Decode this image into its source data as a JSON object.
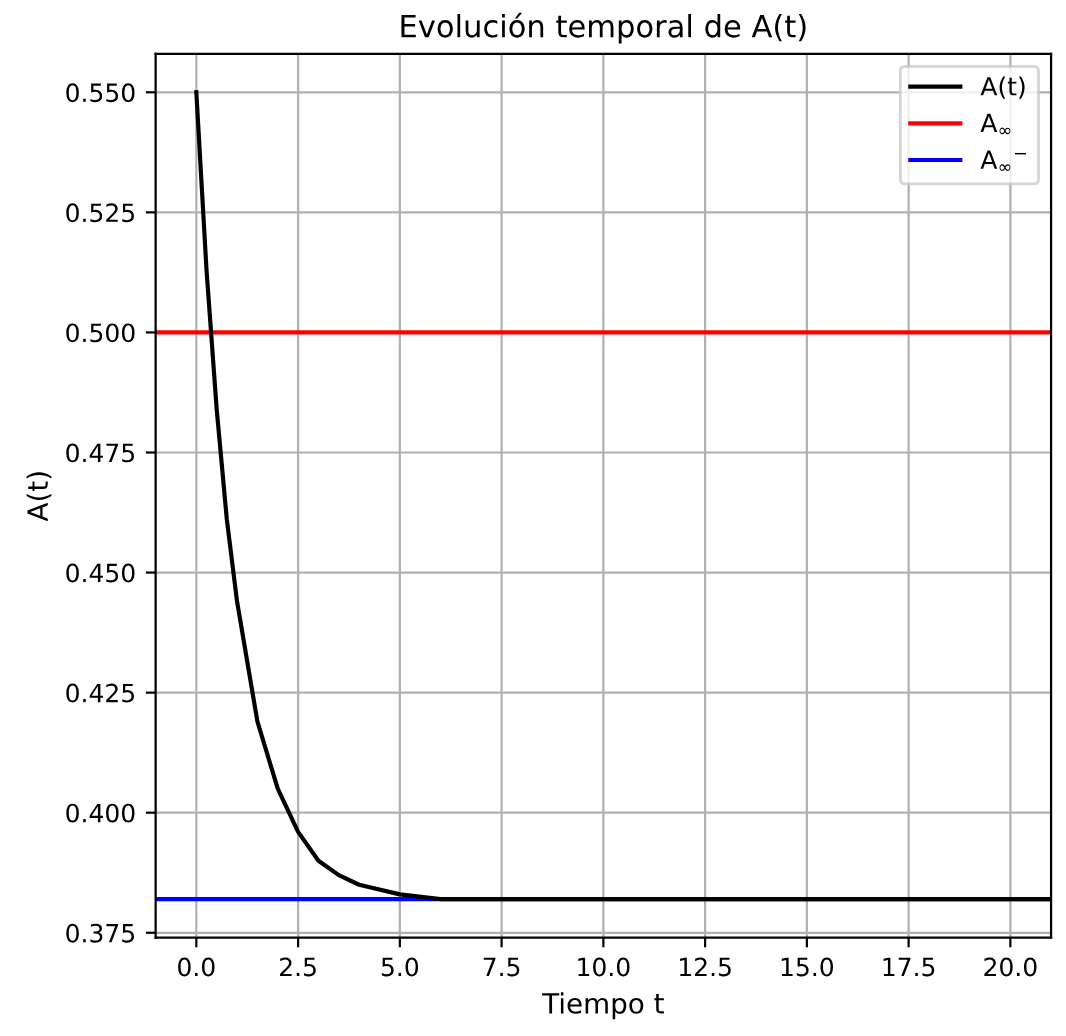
{
  "chart_data": {
    "type": "line",
    "title": "Evolución temporal de A(t)",
    "xlabel": "Tiempo t",
    "ylabel": "A(t)",
    "x": [
      0,
      0.25,
      0.5,
      0.75,
      1,
      1.5,
      2,
      2.5,
      3,
      3.5,
      4,
      5,
      6,
      7,
      8,
      10,
      12.5,
      15,
      17.5,
      20,
      21
    ],
    "series": [
      {
        "name": "A(t)",
        "color": "#000000",
        "values": [
          0.55,
          0.513,
          0.484,
          0.461,
          0.444,
          0.419,
          0.405,
          0.396,
          0.39,
          0.387,
          0.385,
          0.383,
          0.382,
          0.382,
          0.382,
          0.382,
          0.382,
          0.382,
          0.382,
          0.382,
          0.382
        ]
      }
    ],
    "ref_lines": [
      {
        "axis": "y",
        "value": 0.5,
        "label": "A$_{∞}$",
        "color": "#ff0000"
      },
      {
        "axis": "y",
        "value": 0.382,
        "label": "A$_{∞}$$^{−}$",
        "color": "#0000ff"
      }
    ],
    "xlim": [
      -1,
      21
    ],
    "ylim": [
      0.374,
      0.558
    ],
    "xticks": [
      {
        "value": 0,
        "label": "0.0"
      },
      {
        "value": 2.5,
        "label": "2.5"
      },
      {
        "value": 5,
        "label": "5.0"
      },
      {
        "value": 7.5,
        "label": "7.5"
      },
      {
        "value": 10,
        "label": "10.0"
      },
      {
        "value": 12.5,
        "label": "12.5"
      },
      {
        "value": 15,
        "label": "15.0"
      },
      {
        "value": 17.5,
        "label": "17.5"
      },
      {
        "value": 20,
        "label": "20.0"
      }
    ],
    "yticks": [
      {
        "value": 0.375,
        "label": "0.375"
      },
      {
        "value": 0.4,
        "label": "0.400"
      },
      {
        "value": 0.425,
        "label": "0.425"
      },
      {
        "value": 0.45,
        "label": "0.450"
      },
      {
        "value": 0.475,
        "label": "0.475"
      },
      {
        "value": 0.5,
        "label": "0.500"
      },
      {
        "value": 0.525,
        "label": "0.525"
      },
      {
        "value": 0.55,
        "label": "0.550"
      }
    ],
    "grid": true,
    "legend": "top right",
    "marker": "none",
    "line_style": "solid"
  }
}
